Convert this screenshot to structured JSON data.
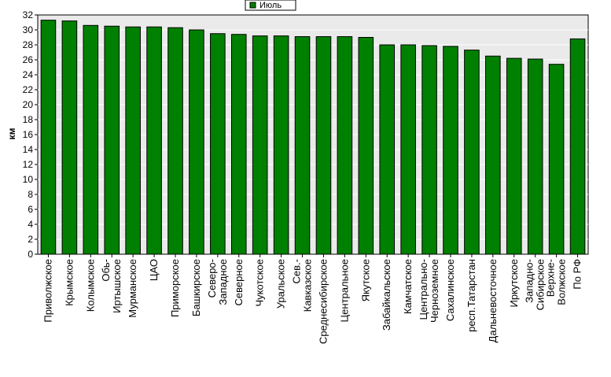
{
  "chart_data": {
    "type": "bar",
    "title": "",
    "xlabel": "",
    "ylabel": "км",
    "ylim": [
      0,
      32
    ],
    "ytick_step": 2,
    "grid": true,
    "legend_position": "top-center",
    "bar_color": "#008000",
    "plot_background": "#eaeaea",
    "series": [
      {
        "name": "Июль",
        "values": [
          31.3,
          31.2,
          30.6,
          30.5,
          30.4,
          30.4,
          30.3,
          30.0,
          29.5,
          29.4,
          29.2,
          29.2,
          29.1,
          29.1,
          29.1,
          29.0,
          28.0,
          28.0,
          27.9,
          27.8,
          27.3,
          26.5,
          26.2,
          26.1,
          25.4,
          28.8
        ]
      }
    ],
    "categories": [
      "Приволжское",
      "Крымское",
      "Колымское",
      "Обь-Иртышское",
      "Мурманское",
      "ЦАО",
      "Приморское",
      "Башкирское",
      "Северо-Западное",
      "Северное",
      "Чукотское",
      "Уральское",
      "Сев.-Кавказское",
      "Среднесибирское",
      "Центральное",
      "Якутское",
      "Забайкальское",
      "Камчатское",
      "Центрально-Черноземное",
      "Сахалинское",
      "респ.Татарстан",
      "Дальневосточное",
      "Иркутское",
      "Западно-Сибирское",
      "Верхне-Волжское",
      "По РФ"
    ],
    "category_lines": [
      [
        "Приволжское"
      ],
      [
        "Крымское"
      ],
      [
        "Колымское"
      ],
      [
        "Обь-",
        "Иртышское"
      ],
      [
        "Мурманское"
      ],
      [
        "ЦАО"
      ],
      [
        "Приморское"
      ],
      [
        "Башкирское"
      ],
      [
        "Северо-",
        "Западное"
      ],
      [
        "Северное"
      ],
      [
        "Чукотское"
      ],
      [
        "Уральское"
      ],
      [
        "Сев.-",
        "Кавказское"
      ],
      [
        "Среднесибирское"
      ],
      [
        "Центральное"
      ],
      [
        "Якутское"
      ],
      [
        "Забайкальское"
      ],
      [
        "Камчатское"
      ],
      [
        "Центрально-",
        "Черноземное"
      ],
      [
        "Сахалинское"
      ],
      [
        "респ.Татарстан"
      ],
      [
        "Дальневосточное"
      ],
      [
        "Иркутское"
      ],
      [
        "Западно-",
        "Сибирское"
      ],
      [
        "Верхне-",
        "Волжское"
      ],
      [
        "По РФ"
      ]
    ]
  }
}
